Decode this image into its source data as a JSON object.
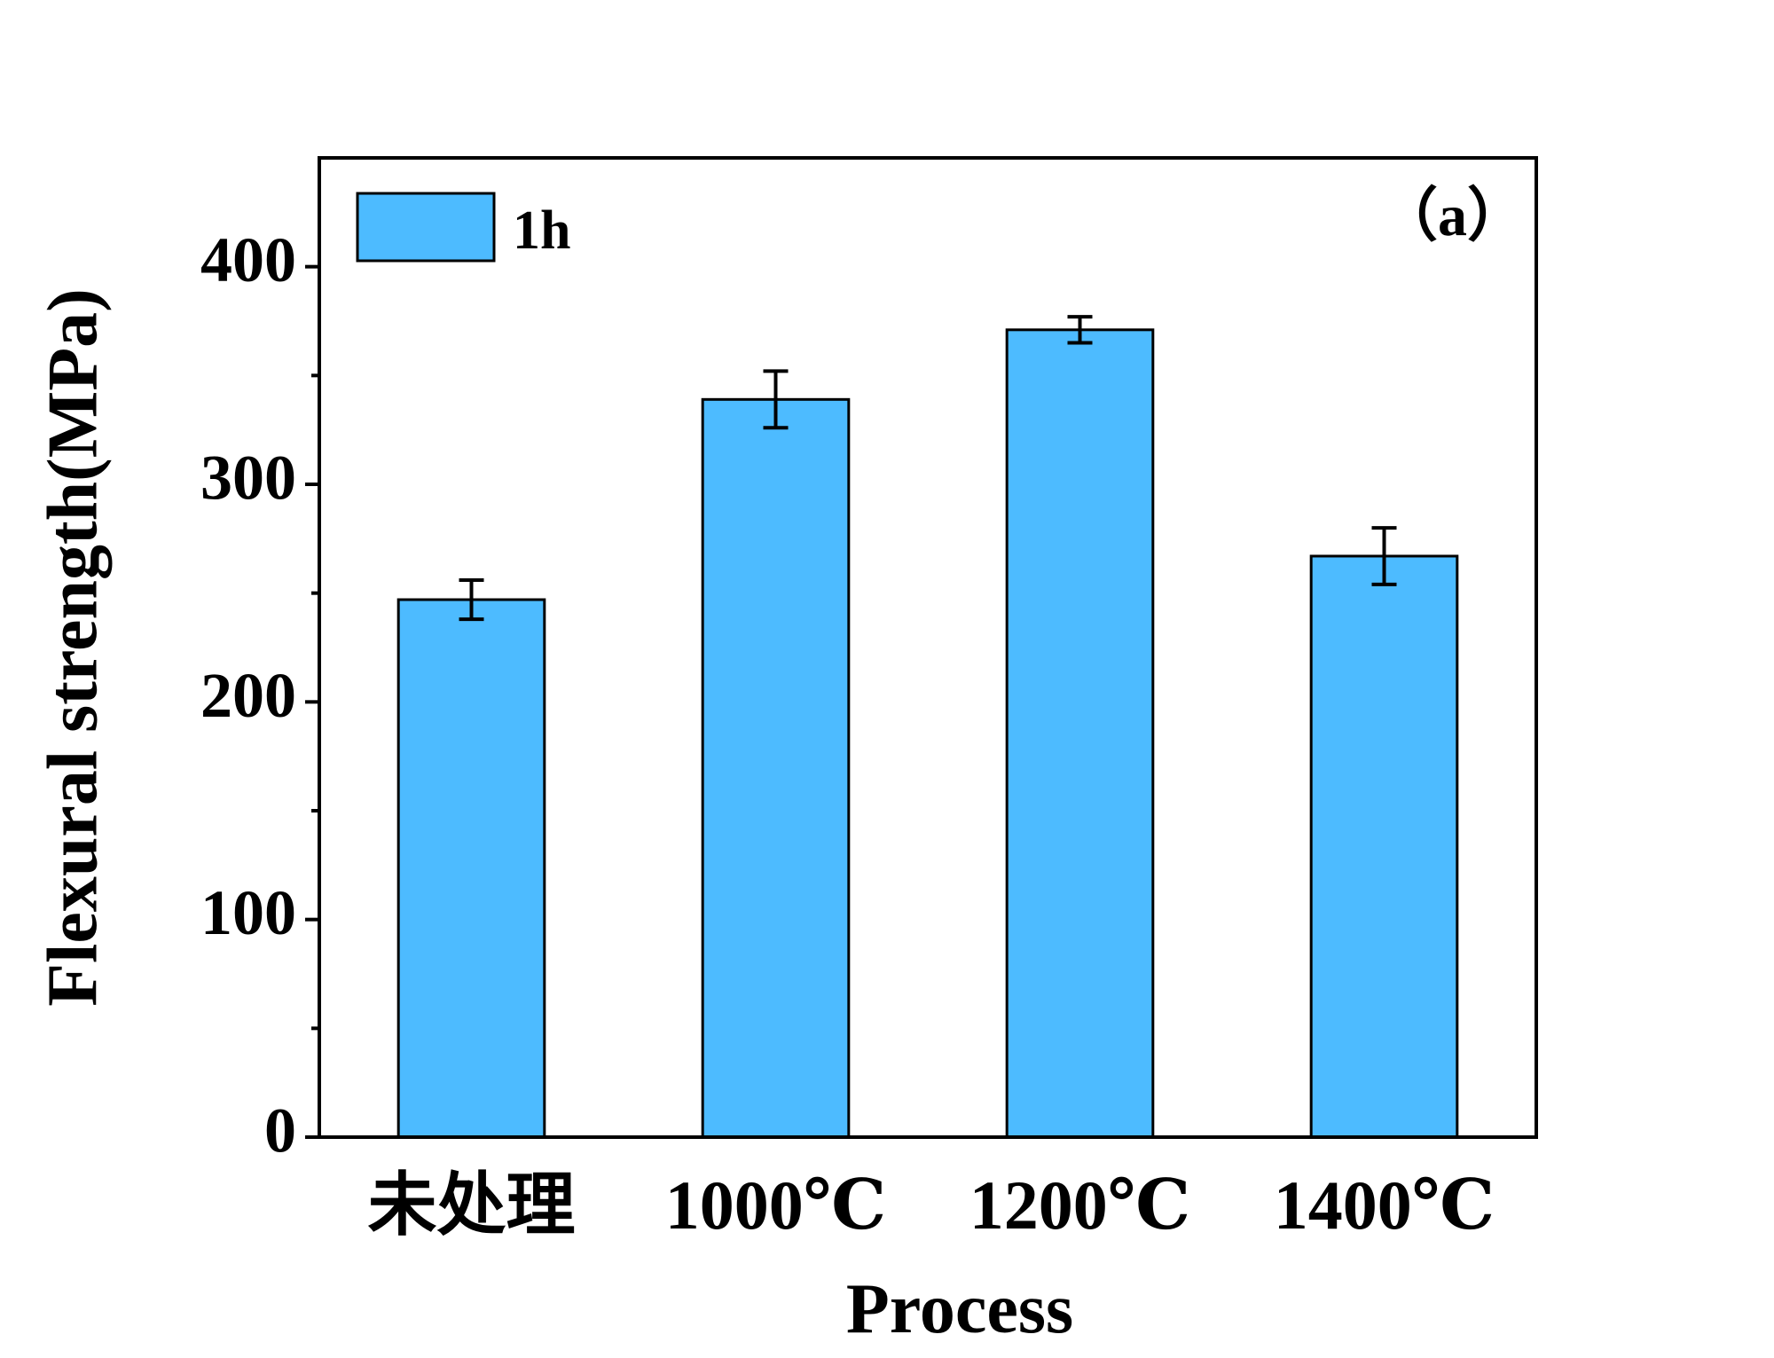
{
  "chart_data": {
    "type": "bar",
    "title": "",
    "panel_label": "（a）",
    "xlabel": "Process",
    "ylabel": "Flexural strength(MPa)",
    "categories": [
      "未处理",
      "1000℃",
      "1200℃",
      "1400℃"
    ],
    "series": [
      {
        "name": "1h",
        "values": [
          247,
          339,
          371,
          267
        ],
        "errors": [
          9,
          13,
          6,
          13
        ]
      }
    ],
    "ylim": [
      0,
      450
    ],
    "yticks": [
      "0",
      "100",
      "200",
      "300",
      "400"
    ],
    "yticks_values": [
      0,
      100,
      200,
      300,
      400
    ],
    "ytick_minor_values": [
      50,
      150,
      250,
      350
    ],
    "grid": false,
    "legend_position": "top-left",
    "colors": {
      "bar": "#4dbbff",
      "edge": "#000000"
    }
  }
}
